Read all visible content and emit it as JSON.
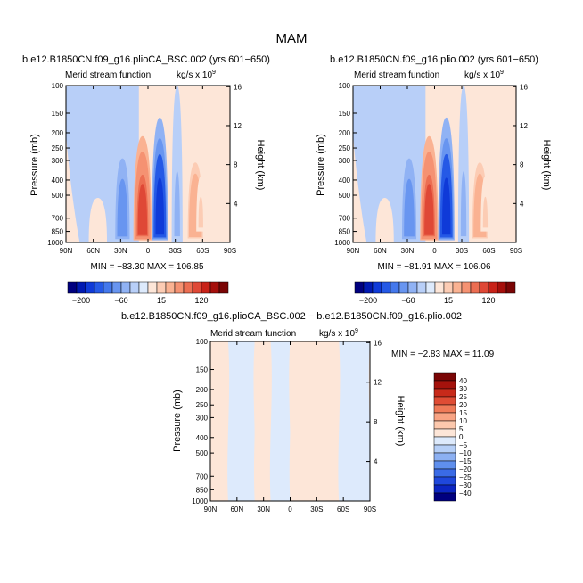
{
  "main_title": "MAM",
  "chart_data": [
    {
      "type": "heatmap",
      "title": "b.e12.B1850CN.f09_g16.plioCA_BSC.002 (yrs 601−650)",
      "subtitle_left": "Merid stream function",
      "units": "kg/s x 10",
      "units_exp": "9",
      "ylabel": "Pressure (mb)",
      "ylabel_right": "Height (km)",
      "x_ticks": [
        "90N",
        "60N",
        "30N",
        "0",
        "30S",
        "60S",
        "90S"
      ],
      "y_ticks": [
        "100",
        "150",
        "200",
        "250",
        "300",
        "400",
        "500",
        "700",
        "850",
        "1000"
      ],
      "y_ticks_right": [
        "16",
        "12",
        "8",
        "4"
      ],
      "stats": "MIN = −83.30   MAX = 106.85",
      "min": -83.3,
      "max": 106.85,
      "features": [
        {
          "lat": 6,
          "top": 210,
          "bottom": 970,
          "width": 10,
          "value": 106.85
        },
        {
          "lat": -13,
          "top": 160,
          "bottom": 970,
          "width": 9,
          "value": -83.3
        },
        {
          "lat": 28,
          "top": 240,
          "bottom": 970,
          "width": 9,
          "value": -35
        },
        {
          "lat": -52,
          "top": 200,
          "bottom": 980,
          "width": 11,
          "value": 32
        },
        {
          "lat": -58,
          "top": 380,
          "bottom": 850,
          "width": 5,
          "value": 18
        },
        {
          "lat": 55,
          "top": 520,
          "bottom": 990,
          "width": 10,
          "value": 8
        },
        {
          "lat": -32,
          "top": 100,
          "bottom": 1000,
          "width": 6,
          "value": -12
        },
        {
          "lat": -68,
          "top": 100,
          "bottom": 1000,
          "width": 7,
          "value": 6
        }
      ]
    },
    {
      "type": "heatmap",
      "title": "b.e12.B1850CN.f09_g16.plio.002 (yrs 601−650)",
      "subtitle_left": "Merid stream function",
      "units": "kg/s x 10",
      "units_exp": "9",
      "ylabel": "Pressure (mb)",
      "ylabel_right": "Height (km)",
      "x_ticks": [
        "90N",
        "60N",
        "30N",
        "0",
        "30S",
        "60S",
        "90S"
      ],
      "y_ticks": [
        "100",
        "150",
        "200",
        "250",
        "300",
        "400",
        "500",
        "700",
        "850",
        "1000"
      ],
      "y_ticks_right": [
        "16",
        "12",
        "8",
        "4"
      ],
      "stats": "MIN = −81.91   MAX = 106.06",
      "min": -81.91,
      "max": 106.06,
      "features": [
        {
          "lat": 6,
          "top": 210,
          "bottom": 970,
          "width": 10,
          "value": 106.06
        },
        {
          "lat": -13,
          "top": 160,
          "bottom": 970,
          "width": 9,
          "value": -81.91
        },
        {
          "lat": 28,
          "top": 240,
          "bottom": 970,
          "width": 9,
          "value": -34
        },
        {
          "lat": -50,
          "top": 200,
          "bottom": 980,
          "width": 11,
          "value": 30
        },
        {
          "lat": -56,
          "top": 380,
          "bottom": 850,
          "width": 5,
          "value": 18
        },
        {
          "lat": 55,
          "top": 520,
          "bottom": 990,
          "width": 10,
          "value": 7
        },
        {
          "lat": -32,
          "top": 100,
          "bottom": 1000,
          "width": 6,
          "value": -12
        },
        {
          "lat": -68,
          "top": 100,
          "bottom": 1000,
          "width": 7,
          "value": 6
        }
      ]
    },
    {
      "type": "heatmap",
      "title": "b.e12.B1850CN.f09_g16.plioCA_BSC.002 − b.e12.B1850CN.f09_g16.plio.002",
      "subtitle_left": "Merid stream function",
      "units": "kg/s x 10",
      "units_exp": "9",
      "ylabel": "Pressure (mb)",
      "ylabel_right": "Height (km)",
      "x_ticks": [
        "90N",
        "60N",
        "30N",
        "0",
        "30S",
        "60S",
        "90S"
      ],
      "y_ticks": [
        "100",
        "150",
        "200",
        "250",
        "300",
        "400",
        "500",
        "700",
        "850",
        "1000"
      ],
      "y_ticks_right": [
        "16",
        "12",
        "8",
        "4"
      ],
      "stats": "MIN =   −2.83   MAX =   11.09",
      "min": -2.83,
      "max": 11.09,
      "bands": [
        {
          "from": 90,
          "to": 70,
          "value": 2
        },
        {
          "from": 70,
          "to": 40,
          "value": -2
        },
        {
          "from": 40,
          "to": 22,
          "value": 2
        },
        {
          "from": 22,
          "to": 0,
          "value": -2
        },
        {
          "from": 0,
          "to": -55,
          "value": 2
        },
        {
          "from": -55,
          "to": -90,
          "value": -2
        }
      ]
    }
  ],
  "colorbar_top": {
    "colors": [
      "#00007f",
      "#0019b2",
      "#0f3ad8",
      "#2559e6",
      "#4478ec",
      "#6895f0",
      "#90b2f4",
      "#b8cff8",
      "#ddeafc",
      "#fde6d8",
      "#fcccb4",
      "#fab292",
      "#f59272",
      "#ec6e52",
      "#df4836",
      "#c82218",
      "#a50f0b",
      "#7a0505"
    ],
    "labels": [
      "−200",
      "−60",
      "15",
      "120"
    ]
  },
  "colorbar_diff": {
    "colors": [
      "#7a0505",
      "#a5120c",
      "#c82a1a",
      "#df4c34",
      "#ef7a58",
      "#f8a383",
      "#fcc8ad",
      "#fde6d8",
      "#ddeafc",
      "#b6cff7",
      "#8cb0f2",
      "#5f8fed",
      "#3a6be6",
      "#1f48dc",
      "#0c26c2",
      "#00007f"
    ],
    "labels": [
      "40",
      "30",
      "25",
      "20",
      "15",
      "10",
      "5",
      "0",
      "−5",
      "−10",
      "−15",
      "−20",
      "−25",
      "−30",
      "−40"
    ]
  }
}
